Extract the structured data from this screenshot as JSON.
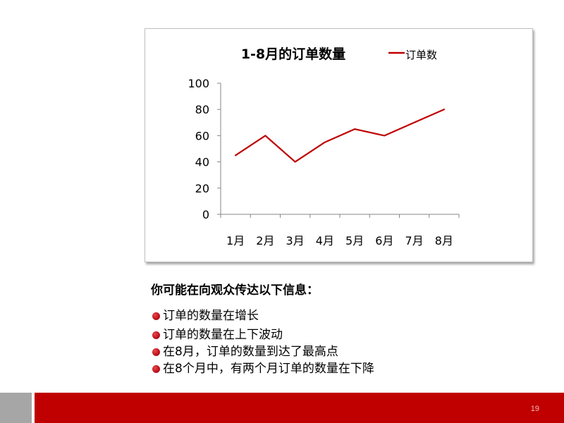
{
  "chart_data": {
    "type": "line",
    "title": "1-8月的订单数量",
    "categories": [
      "1月",
      "2月",
      "3月",
      "4月",
      "5月",
      "6月",
      "7月",
      "8月"
    ],
    "series": [
      {
        "name": "订单数",
        "values": [
          45,
          60,
          40,
          55,
          65,
          60,
          70,
          80
        ],
        "color": "#c00000"
      }
    ],
    "y_ticks": [
      0,
      20,
      40,
      60,
      80,
      100
    ],
    "ylim": [
      0,
      100
    ],
    "grid": false,
    "legend": "top-right"
  },
  "message": {
    "title": "你可能在向观众传达以下信息：",
    "bullets": [
      "订单的数量在增长",
      "订单的数量在上下波动",
      "在8月，订单的数量到达了最高点",
      "在8个月中，有两个月订单的数量在下降"
    ]
  },
  "footer": {
    "page_number": "19"
  }
}
